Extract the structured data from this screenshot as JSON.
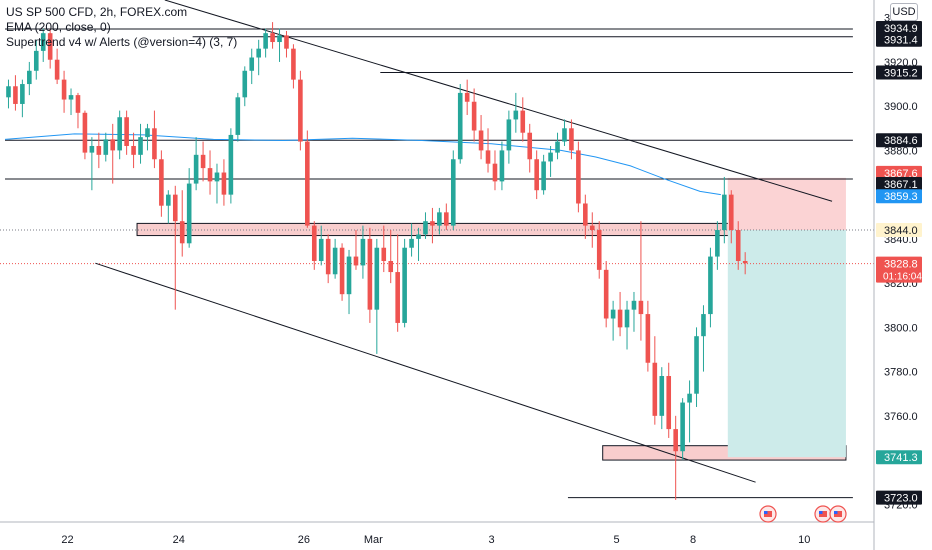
{
  "legend": {
    "symbol": "US SP 500 CFD, 2h, FOREX.com",
    "ema": "EMA (200, close, 0)",
    "supertrend": "Supertrend v4 w/ Alerts (@version=4) (3, 7)"
  },
  "currency": "USD",
  "colors": {
    "up": "#26a69a",
    "down": "#ef5350",
    "ema": "#2196f3",
    "line": "#131722",
    "zone": "#f8cdcd",
    "target": "#cdebea",
    "stop": "#fbd3d4"
  },
  "chart_data": {
    "type": "candlestick",
    "ylim": [
      3712,
      3948
    ],
    "y_ticks": [
      3720.0,
      3740.0,
      3760.0,
      3780.0,
      3800.0,
      3820.0,
      3840.0,
      3860.0,
      3880.0,
      3900.0,
      3920.0,
      3940.0
    ],
    "x_ticks": [
      {
        "label": "22",
        "bar": 9
      },
      {
        "label": "24",
        "bar": 25
      },
      {
        "label": "26",
        "bar": 43
      },
      {
        "label": "Mar",
        "bar": 53
      },
      {
        "label": "3",
        "bar": 70
      },
      {
        "label": "5",
        "bar": 88
      },
      {
        "label": "8",
        "bar": 99
      },
      {
        "label": "10",
        "bar": 115
      }
    ],
    "price_labels": [
      {
        "value": 3934.9,
        "text": "3934.9",
        "style": "black"
      },
      {
        "value": 3931.4,
        "text": "3931.4",
        "style": "black"
      },
      {
        "value": 3915.2,
        "text": "3915.2",
        "style": "black"
      },
      {
        "value": 3884.6,
        "text": "3884.6",
        "style": "black"
      },
      {
        "value": 3867.6,
        "text": "3867.6",
        "style": "red"
      },
      {
        "value": 3867.1,
        "text": "3867.1",
        "style": "black"
      },
      {
        "value": 3859.3,
        "text": "3859.3",
        "style": "blue"
      },
      {
        "value": 3844.0,
        "text": "3844.0",
        "style": "yellow"
      },
      {
        "value": 3828.8,
        "text": "3828.8",
        "style": "red",
        "sub": "01:16:04"
      },
      {
        "value": 3741.3,
        "text": "3741.3",
        "style": "green"
      },
      {
        "value": 3723.0,
        "text": "3723.0",
        "style": "black"
      }
    ],
    "h_lines": [
      {
        "value": 3934.9,
        "from": 0,
        "to": 122
      },
      {
        "value": 3931.4,
        "from": 27,
        "to": 122
      },
      {
        "value": 3915.2,
        "from": 54,
        "to": 122
      },
      {
        "value": 3884.6,
        "from": 0,
        "to": 122
      },
      {
        "value": 3867.1,
        "from": 0,
        "to": 122
      },
      {
        "value": 3723.0,
        "from": 81,
        "to": 122
      }
    ],
    "trend_lines": [
      {
        "from": [
          23,
          3948
        ],
        "to": [
          119,
          3857
        ]
      },
      {
        "from": [
          13,
          3829
        ],
        "to": [
          108,
          3730
        ]
      }
    ],
    "zones": [
      {
        "name": "resistance",
        "x0": 19,
        "x1": 113,
        "y0": 3841.5,
        "y1": 3847
      },
      {
        "name": "support",
        "x0": 86,
        "x1": 121,
        "y0": 3740,
        "y1": 3746.5
      }
    ],
    "position": {
      "entry": 3844.0,
      "stop": 3867.6,
      "target": 3741.3,
      "x0": 104,
      "x1": 121
    },
    "ema": [
      [
        0,
        3885
      ],
      [
        10,
        3887.5
      ],
      [
        20,
        3887
      ],
      [
        25,
        3886
      ],
      [
        30,
        3885
      ],
      [
        40,
        3884.5
      ],
      [
        50,
        3885.5
      ],
      [
        60,
        3884.5
      ],
      [
        70,
        3883
      ],
      [
        80,
        3880
      ],
      [
        85,
        3877
      ],
      [
        90,
        3873
      ],
      [
        95,
        3867
      ],
      [
        100,
        3861.5
      ],
      [
        103,
        3860
      ]
    ],
    "ohlc": [
      [
        3904,
        3912,
        3899,
        3909
      ],
      [
        3909,
        3914,
        3898,
        3901
      ],
      [
        3901,
        3912,
        3895,
        3910
      ],
      [
        3910,
        3920,
        3905,
        3916
      ],
      [
        3916,
        3930,
        3912,
        3925
      ],
      [
        3925,
        3935,
        3920,
        3933
      ],
      [
        3933,
        3935,
        3917,
        3921
      ],
      [
        3921,
        3926,
        3910,
        3912
      ],
      [
        3912,
        3916,
        3897,
        3903
      ],
      [
        3903,
        3908,
        3896,
        3905
      ],
      [
        3905,
        3906,
        3890,
        3897
      ],
      [
        3897,
        3898,
        3876,
        3879
      ],
      [
        3879,
        3886,
        3862,
        3882
      ],
      [
        3882,
        3888,
        3872,
        3878
      ],
      [
        3878,
        3888,
        3875,
        3885
      ],
      [
        3885,
        3892,
        3865,
        3880
      ],
      [
        3880,
        3898,
        3876,
        3895
      ],
      [
        3895,
        3898,
        3878,
        3882
      ],
      [
        3882,
        3888,
        3872,
        3878
      ],
      [
        3878,
        3892,
        3874,
        3886
      ],
      [
        3886,
        3892,
        3880,
        3890
      ],
      [
        3890,
        3898,
        3872,
        3876
      ],
      [
        3876,
        3880,
        3850,
        3855
      ],
      [
        3855,
        3862,
        3847,
        3860
      ],
      [
        3860,
        3864,
        3808,
        3848
      ],
      [
        3848,
        3862,
        3832,
        3838
      ],
      [
        3838,
        3872,
        3836,
        3865
      ],
      [
        3865,
        3886,
        3862,
        3878
      ],
      [
        3878,
        3884,
        3866,
        3872
      ],
      [
        3872,
        3880,
        3860,
        3866
      ],
      [
        3866,
        3874,
        3856,
        3870
      ],
      [
        3870,
        3876,
        3855,
        3860
      ],
      [
        3860,
        3890,
        3856,
        3887
      ],
      [
        3887,
        3906,
        3884,
        3904
      ],
      [
        3904,
        3918,
        3900,
        3916
      ],
      [
        3916,
        3926,
        3910,
        3922
      ],
      [
        3922,
        3930,
        3914,
        3926
      ],
      [
        3926,
        3935,
        3922,
        3933
      ],
      [
        3933,
        3938,
        3926,
        3929
      ],
      [
        3929,
        3935,
        3920,
        3932
      ],
      [
        3932,
        3934,
        3922,
        3926
      ],
      [
        3926,
        3928,
        3908,
        3912
      ],
      [
        3912,
        3916,
        3880,
        3884
      ],
      [
        3884,
        3889,
        3845,
        3846
      ],
      [
        3846,
        3848,
        3826,
        3830
      ],
      [
        3830,
        3846,
        3828,
        3840
      ],
      [
        3840,
        3842,
        3820,
        3824
      ],
      [
        3824,
        3840,
        3822,
        3836
      ],
      [
        3836,
        3838,
        3812,
        3815
      ],
      [
        3815,
        3835,
        3806,
        3832
      ],
      [
        3832,
        3844,
        3826,
        3828
      ],
      [
        3828,
        3846,
        3822,
        3840
      ],
      [
        3840,
        3845,
        3802,
        3808
      ],
      [
        3808,
        3840,
        3788,
        3836
      ],
      [
        3836,
        3846,
        3825,
        3830
      ],
      [
        3830,
        3844,
        3820,
        3825
      ],
      [
        3825,
        3842,
        3798,
        3802
      ],
      [
        3802,
        3840,
        3800,
        3836
      ],
      [
        3836,
        3847,
        3832,
        3840
      ],
      [
        3840,
        3845,
        3830,
        3842
      ],
      [
        3842,
        3852,
        3840,
        3848
      ],
      [
        3848,
        3854,
        3838,
        3846
      ],
      [
        3846,
        3854,
        3842,
        3852
      ],
      [
        3852,
        3856,
        3844,
        3846
      ],
      [
        3846,
        3880,
        3844,
        3876
      ],
      [
        3876,
        3910,
        3874,
        3906
      ],
      [
        3906,
        3912,
        3896,
        3902
      ],
      [
        3902,
        3908,
        3884,
        3889
      ],
      [
        3889,
        3896,
        3876,
        3880
      ],
      [
        3880,
        3890,
        3870,
        3874
      ],
      [
        3874,
        3880,
        3862,
        3866
      ],
      [
        3866,
        3884,
        3862,
        3880
      ],
      [
        3880,
        3898,
        3874,
        3894
      ],
      [
        3894,
        3906,
        3888,
        3898
      ],
      [
        3898,
        3904,
        3884,
        3888
      ],
      [
        3888,
        3892,
        3870,
        3876
      ],
      [
        3876,
        3880,
        3858,
        3862
      ],
      [
        3862,
        3878,
        3860,
        3875
      ],
      [
        3875,
        3882,
        3868,
        3879
      ],
      [
        3879,
        3888,
        3876,
        3884
      ],
      [
        3884,
        3894,
        3882,
        3890
      ],
      [
        3890,
        3894,
        3876,
        3880
      ],
      [
        3880,
        3884,
        3852,
        3856
      ],
      [
        3856,
        3860,
        3840,
        3846
      ],
      [
        3846,
        3852,
        3836,
        3844
      ],
      [
        3844,
        3848,
        3822,
        3826
      ],
      [
        3826,
        3830,
        3800,
        3804
      ],
      [
        3804,
        3812,
        3794,
        3808
      ],
      [
        3808,
        3816,
        3796,
        3800
      ],
      [
        3800,
        3812,
        3790,
        3808
      ],
      [
        3808,
        3816,
        3798,
        3812
      ],
      [
        3812,
        3848,
        3794,
        3806
      ],
      [
        3806,
        3812,
        3780,
        3784
      ],
      [
        3784,
        3796,
        3756,
        3760
      ],
      [
        3760,
        3782,
        3754,
        3778
      ],
      [
        3778,
        3784,
        3750,
        3754
      ],
      [
        3754,
        3760,
        3722,
        3744
      ],
      [
        3744,
        3768,
        3740,
        3766
      ],
      [
        3766,
        3776,
        3748,
        3770
      ],
      [
        3770,
        3800,
        3764,
        3796
      ],
      [
        3796,
        3810,
        3780,
        3806
      ],
      [
        3806,
        3836,
        3800,
        3832
      ],
      [
        3832,
        3848,
        3826,
        3844
      ],
      [
        3844,
        3868,
        3838,
        3860
      ],
      [
        3860,
        3862,
        3838,
        3844
      ],
      [
        3844,
        3848,
        3826,
        3830
      ],
      [
        3830,
        3834,
        3824,
        3829
      ]
    ]
  }
}
